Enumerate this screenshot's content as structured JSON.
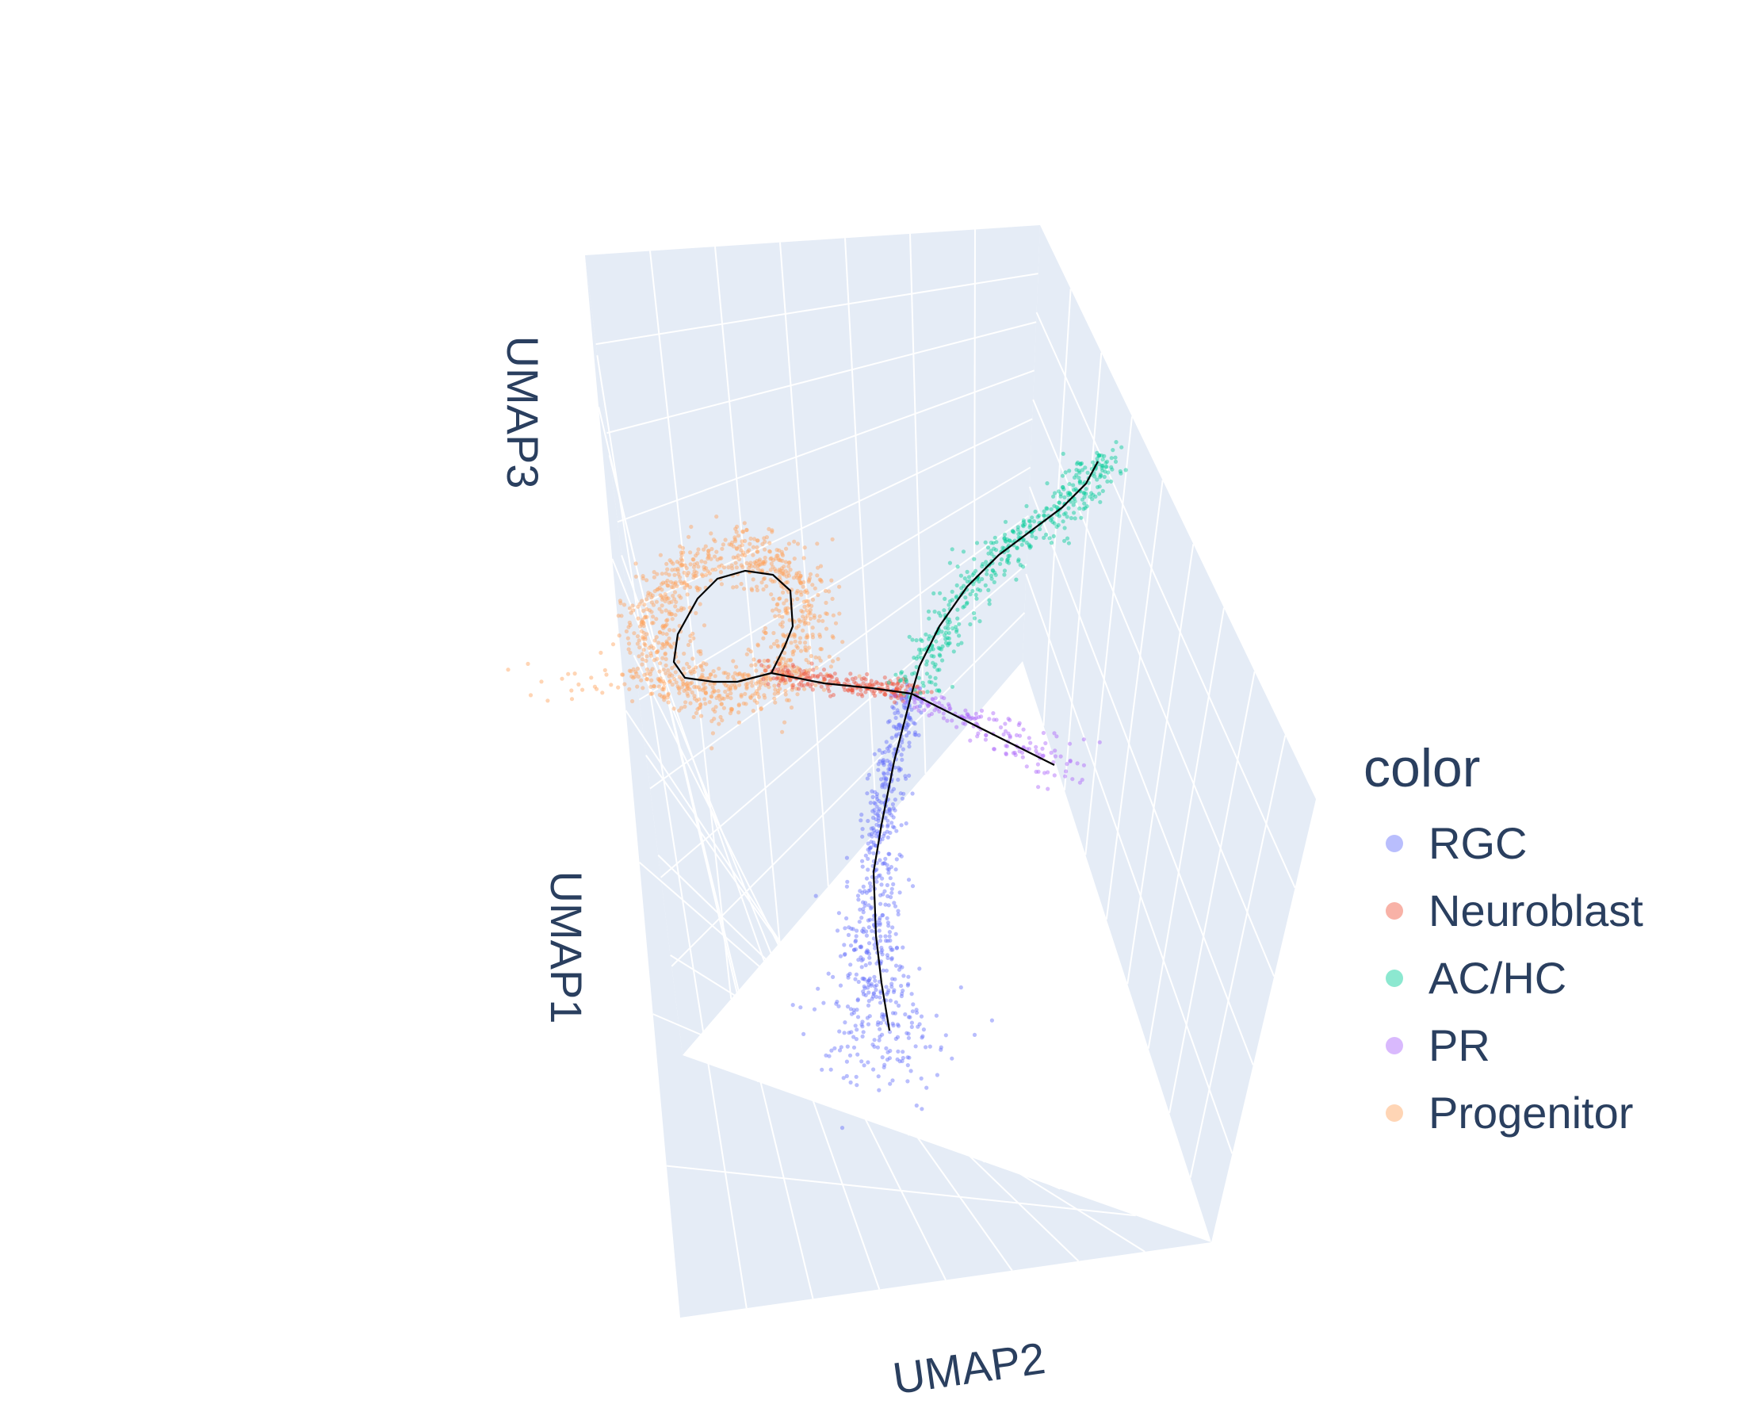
{
  "chart_data": {
    "type": "scatter",
    "dimensions": "3d",
    "axes": {
      "x": "UMAP1",
      "y": "UMAP2",
      "z": "UMAP3"
    },
    "grid": true,
    "legend": {
      "title": "color",
      "position": "right"
    },
    "series": [
      {
        "name": "RGC",
        "color": "#636efa"
      },
      {
        "name": "Neuroblast",
        "color": "#ef553b"
      },
      {
        "name": "AC/HC",
        "color": "#00cc96"
      },
      {
        "name": "PR",
        "color": "#ab63fa"
      },
      {
        "name": "Progenitor",
        "color": "#ffa15a"
      }
    ],
    "trajectory": {
      "color": "#000000"
    }
  }
}
